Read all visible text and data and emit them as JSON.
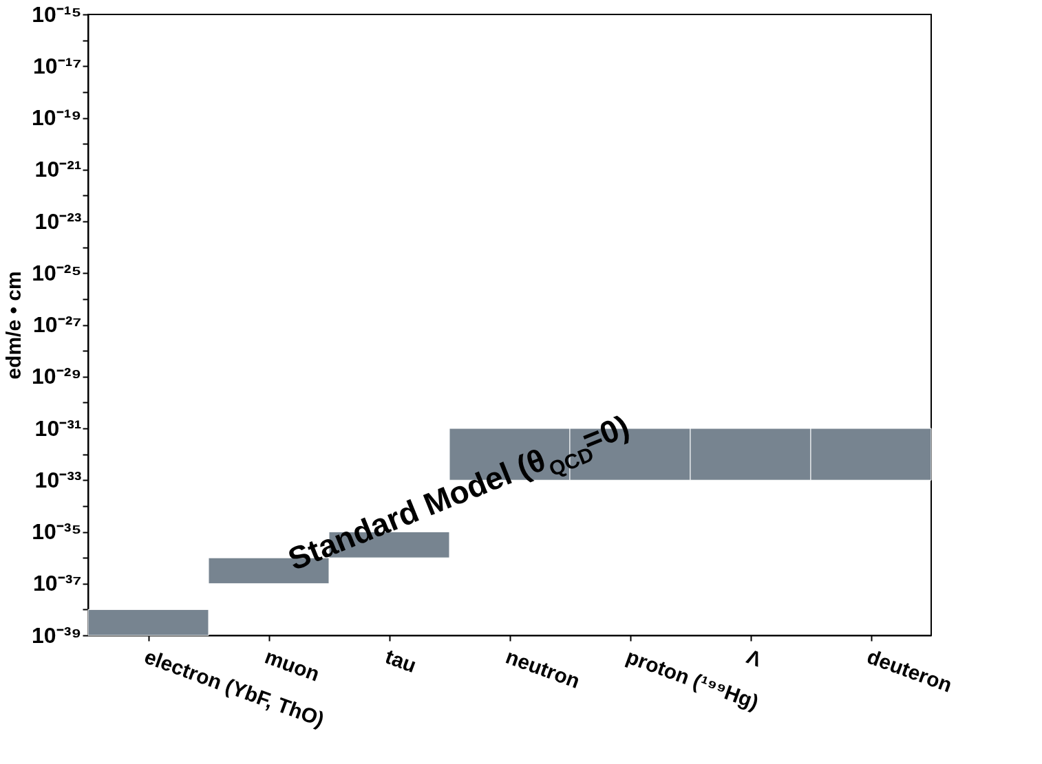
{
  "chart_data": {
    "type": "bar",
    "ylabel": "edm/e • cm",
    "categories": [
      "electron  (YbF, ThO)",
      "muon",
      "tau",
      "neutron",
      "proton (¹⁹⁹Hg)",
      "Λ",
      "deuteron"
    ],
    "base": [
      1e-39,
      1e-37,
      1e-36,
      1e-33,
      1e-33,
      1e-33,
      1e-33
    ],
    "values": [
      9e-39,
      9e-37,
      9e-36,
      9.9e-32,
      9.9e-32,
      9.9e-32,
      9.9e-32
    ],
    "color": "#778490",
    "log": true,
    "grid": false,
    "ylim": [
      1e-39,
      1e-15
    ],
    "yticks": [
      {
        "value": 1e-39,
        "label": "10⁻³⁹"
      },
      {
        "value": 1e-38,
        "label": null
      },
      {
        "value": 1e-37,
        "label": "10⁻³⁷"
      },
      {
        "value": 1e-36,
        "label": null
      },
      {
        "value": 1e-35,
        "label": "10⁻³⁵"
      },
      {
        "value": 1e-34,
        "label": null
      },
      {
        "value": 1e-33,
        "label": "10⁻³³"
      },
      {
        "value": 1e-32,
        "label": null
      },
      {
        "value": 1e-31,
        "label": "10⁻³¹"
      },
      {
        "value": 1e-30,
        "label": null
      },
      {
        "value": 1e-29,
        "label": "10⁻²⁹"
      },
      {
        "value": 1e-28,
        "label": null
      },
      {
        "value": 1e-27,
        "label": "10⁻²⁷"
      },
      {
        "value": 1e-26,
        "label": null
      },
      {
        "value": 1e-25,
        "label": "10⁻²⁵"
      },
      {
        "value": 1e-24,
        "label": null
      },
      {
        "value": 1e-23,
        "label": "10⁻²³"
      },
      {
        "value": 1e-22,
        "label": null
      },
      {
        "value": 1e-21,
        "label": "10⁻²¹"
      },
      {
        "value": 1e-20,
        "label": null
      },
      {
        "value": 1e-19,
        "label": "10⁻¹⁹"
      },
      {
        "value": 1e-18,
        "label": null
      },
      {
        "value": 1e-17,
        "label": "10⁻¹⁷"
      },
      {
        "value": 1e-16,
        "label": null
      },
      {
        "value": 1e-15,
        "label": "10⁻¹⁵"
      }
    ],
    "annotations": [
      "Standard Model (θ$_{QCD}$=0)"
    ]
  }
}
